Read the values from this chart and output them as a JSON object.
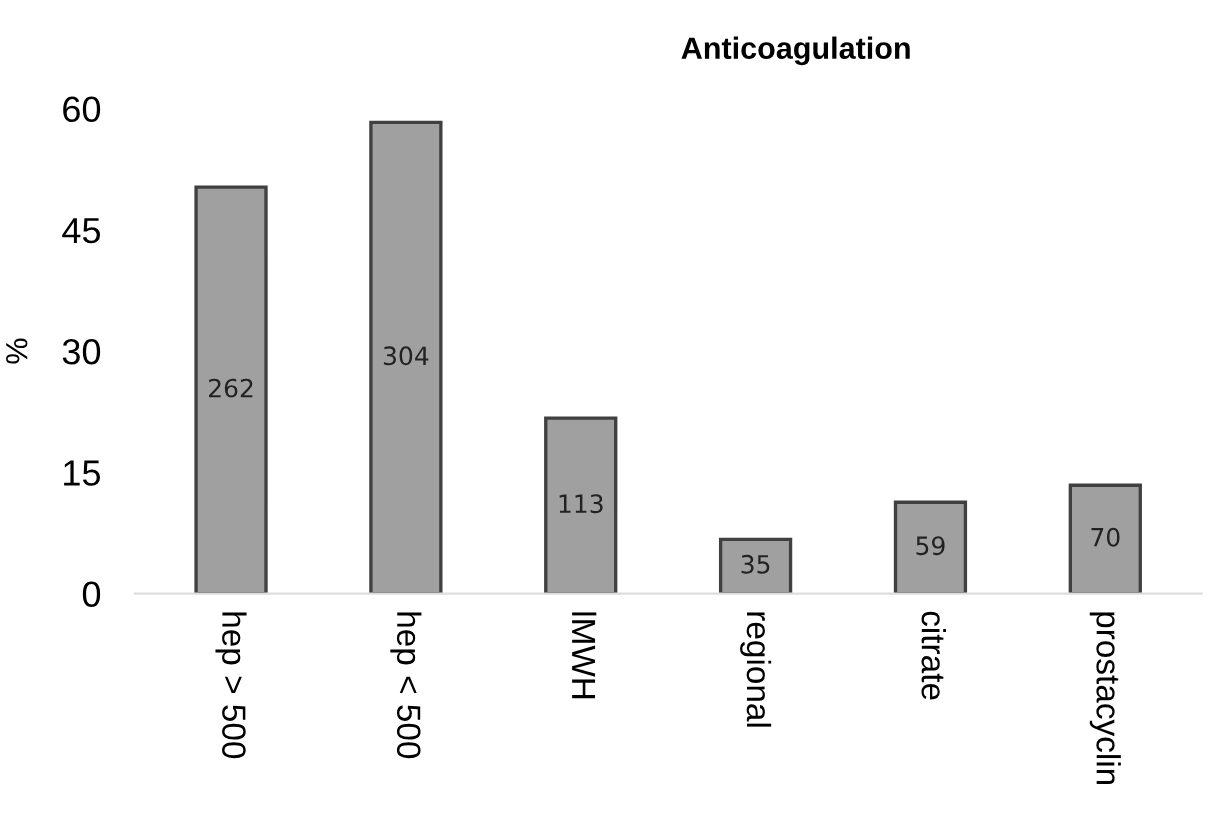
{
  "chart_data": {
    "type": "bar",
    "title": "Anticoagulation",
    "ylabel": "%",
    "categories": [
      "hep > 500",
      "hep < 500",
      "lMWH",
      "regional",
      "citrate",
      "prostacyclin"
    ],
    "values": [
      50.3,
      58.3,
      21.7,
      6.7,
      11.3,
      13.4
    ],
    "annotations": [
      "262",
      "304",
      "113",
      "35",
      "59",
      "70"
    ],
    "color": "#a0a0a0",
    "ylim": [
      0,
      60
    ],
    "yticks": [
      0,
      15,
      30,
      45,
      60
    ],
    "grid": false,
    "legend": false
  }
}
